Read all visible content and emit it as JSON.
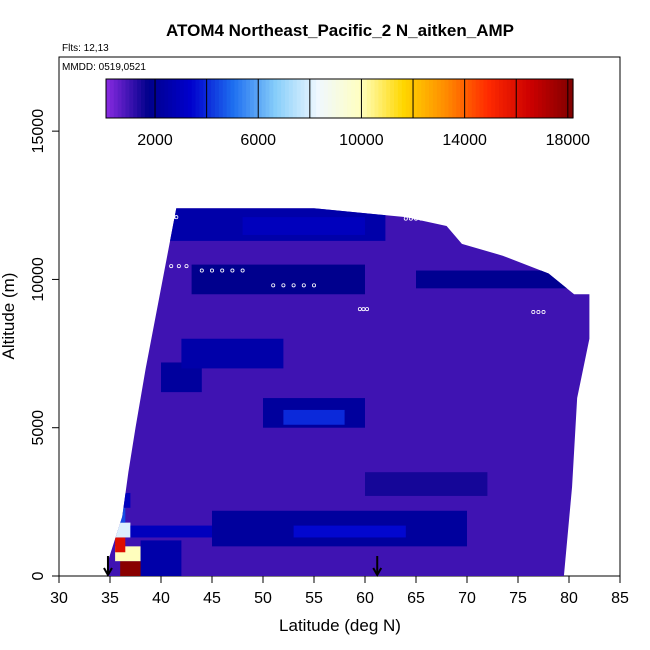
{
  "chart_data": {
    "type": "heatmap",
    "title": "ATOM4 Northeast_Pacific_2 N_aitken_AMP",
    "flights_text": "Flts: 12,13",
    "date_text": "MMDD: 0519,0521",
    "xlabel": "Latitude (deg N)",
    "ylabel": "Altitude (m)",
    "xlim": [
      30,
      85
    ],
    "ylim": [
      0,
      17500
    ],
    "x_ticks": [
      30,
      35,
      40,
      45,
      50,
      55,
      60,
      65,
      70,
      75,
      80,
      85
    ],
    "y_ticks": [
      0,
      5000,
      10000,
      15000
    ],
    "colorbar": {
      "range": [
        100,
        18200
      ],
      "tick_values": [
        2000,
        6000,
        10000,
        14000,
        18000
      ],
      "tick_labels": [
        "2000",
        "6000",
        "10000",
        "14000",
        "18000"
      ],
      "colors": [
        "#8a2be2",
        "#00008b",
        "#0000cd",
        "#1e6ff0",
        "#87cefa",
        "#f0f8ff",
        "#ffffc0",
        "#ffd700",
        "#ff8c00",
        "#ff2a00",
        "#cc0000",
        "#800000"
      ]
    },
    "background_value": 1000,
    "curtain_envelope": {
      "lat": [
        34.8,
        36.2,
        36.8,
        37.5,
        38.5,
        41.5,
        45,
        55,
        64,
        68,
        69.5,
        73.5,
        78,
        80.5,
        82,
        82,
        80.8,
        80.3,
        79.5
      ],
      "top": [
        500,
        2000,
        3500,
        5000,
        7000,
        12400,
        12400,
        12400,
        12100,
        11800,
        11200,
        10800,
        10200,
        9500,
        9500,
        8000,
        6000,
        3000,
        0
      ]
    },
    "features": [
      {
        "lat": [
          36,
          40
        ],
        "alt": [
          0,
          500
        ],
        "value": 18000
      },
      {
        "lat": [
          35.5,
          38
        ],
        "alt": [
          500,
          1000
        ],
        "value": 10000
      },
      {
        "lat": [
          35.5,
          36.5
        ],
        "alt": [
          800,
          1300
        ],
        "value": 16000
      },
      {
        "lat": [
          35.5,
          37
        ],
        "alt": [
          1300,
          1800
        ],
        "value": 8000
      },
      {
        "lat": [
          35.5,
          36.5
        ],
        "alt": [
          1800,
          2300
        ],
        "value": 4500
      },
      {
        "lat": [
          36,
          37
        ],
        "alt": [
          2300,
          2800
        ],
        "value": 3000
      },
      {
        "lat": [
          38,
          42
        ],
        "alt": [
          0,
          1200
        ],
        "value": 2500
      },
      {
        "lat": [
          37,
          45
        ],
        "alt": [
          1300,
          1700
        ],
        "value": 3000
      },
      {
        "lat": [
          45,
          70
        ],
        "alt": [
          1000,
          2200
        ],
        "value": 2200
      },
      {
        "lat": [
          53,
          64
        ],
        "alt": [
          1300,
          1700
        ],
        "value": 3500
      },
      {
        "lat": [
          50,
          60
        ],
        "alt": [
          5000,
          6000
        ],
        "value": 2200
      },
      {
        "lat": [
          52,
          58
        ],
        "alt": [
          5100,
          5600
        ],
        "value": 4000
      },
      {
        "lat": [
          40,
          44
        ],
        "alt": [
          6200,
          7200
        ],
        "value": 2200
      },
      {
        "lat": [
          42,
          52
        ],
        "alt": [
          7000,
          8000
        ],
        "value": 2500
      },
      {
        "lat": [
          40,
          62
        ],
        "alt": [
          11300,
          12400
        ],
        "value": 2500
      },
      {
        "lat": [
          48,
          60
        ],
        "alt": [
          11500,
          12100
        ],
        "value": 3000
      },
      {
        "lat": [
          43,
          60
        ],
        "alt": [
          9500,
          10500
        ],
        "value": 1800
      },
      {
        "lat": [
          65,
          80
        ],
        "alt": [
          9700,
          10300
        ],
        "value": 1900
      },
      {
        "lat": [
          60,
          72
        ],
        "alt": [
          2700,
          3500
        ],
        "value": 1500
      }
    ],
    "arrows_lat": [
      34.8,
      61.2
    ],
    "point_markers": [
      {
        "lat": [
          40.3,
          41.5
        ],
        "alt": 12100,
        "n": 5
      },
      {
        "lat": [
          64,
          68
        ],
        "alt": 12050,
        "n": 9
      },
      {
        "lat": [
          44,
          48
        ],
        "alt": 10300,
        "n": 5
      },
      {
        "lat": [
          51,
          55
        ],
        "alt": 9800,
        "n": 5
      },
      {
        "lat": [
          59.5,
          60.2
        ],
        "alt": 9000,
        "n": 3
      },
      {
        "lat": [
          76.5,
          77.5
        ],
        "alt": 8900,
        "n": 3
      },
      {
        "lat": [
          41,
          42.5
        ],
        "alt": 10450,
        "n": 3
      }
    ]
  }
}
